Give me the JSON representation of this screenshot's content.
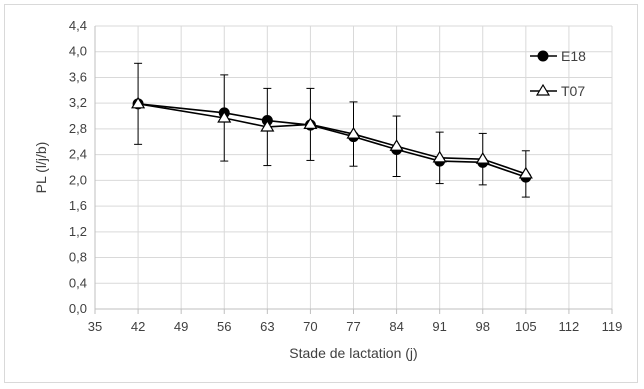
{
  "chart_data": {
    "type": "line",
    "xlabel": "Stade de lactation (j)",
    "ylabel": "PL (l/j/b)",
    "xlim": [
      35,
      119
    ],
    "ylim": [
      0,
      4.4
    ],
    "xticks": [
      "35",
      "42",
      "49",
      "56",
      "63",
      "70",
      "77",
      "84",
      "91",
      "98",
      "105",
      "112",
      "119"
    ],
    "yticks": [
      "0,0",
      "0,4",
      "0,8",
      "1,2",
      "1,6",
      "2,0",
      "2,4",
      "2,8",
      "3,2",
      "3,6",
      "4,0",
      "4,4"
    ],
    "grid": true,
    "legend_position": "top-right",
    "series": [
      {
        "name": "E18",
        "marker": "filled-circle",
        "color": "#000000",
        "x": [
          42,
          56,
          63,
          70,
          77,
          84,
          91,
          98,
          105
        ],
        "y": [
          3.19,
          3.05,
          2.93,
          2.86,
          2.68,
          2.48,
          2.3,
          2.28,
          2.05
        ]
      },
      {
        "name": "T07",
        "marker": "open-triangle",
        "color": "#000000",
        "x": [
          42,
          56,
          63,
          70,
          77,
          84,
          91,
          98,
          105
        ],
        "y": [
          3.19,
          2.97,
          2.83,
          2.87,
          2.72,
          2.53,
          2.35,
          2.33,
          2.1
        ],
        "error": [
          0.63,
          0.67,
          0.6,
          0.56,
          0.5,
          0.47,
          0.4,
          0.4,
          0.36
        ]
      }
    ]
  }
}
